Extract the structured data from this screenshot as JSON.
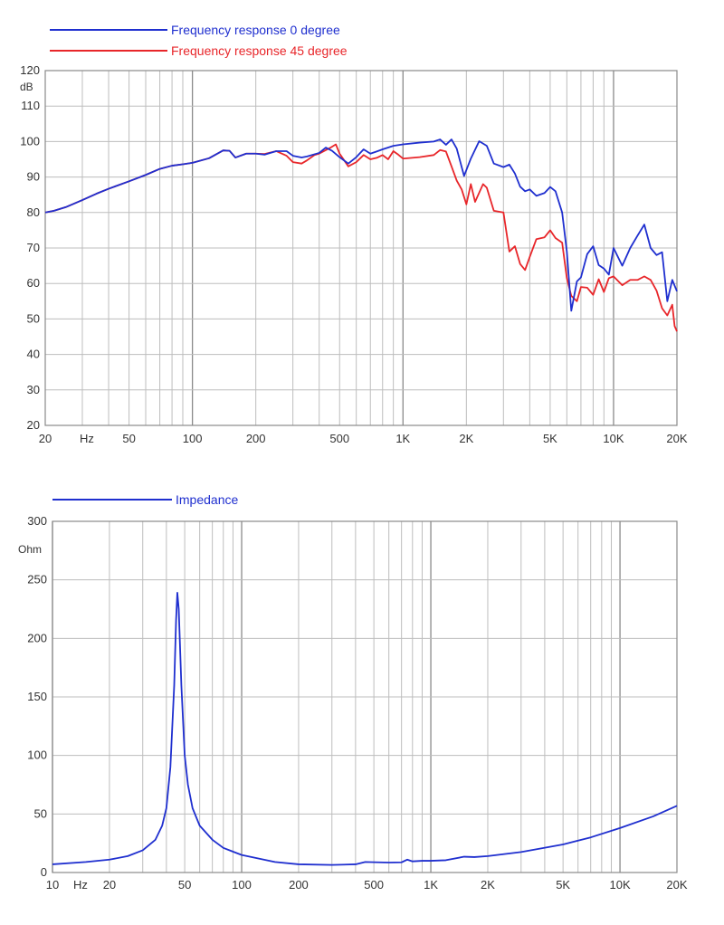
{
  "chart_data": [
    {
      "type": "line",
      "xscale": "log",
      "xlim": [
        20,
        20000
      ],
      "ylim": [
        20,
        120
      ],
      "ylabel_unit": "dB",
      "xunit": "Hz",
      "grid": true,
      "legend_position": "top-left",
      "xticks": [
        {
          "v": 20,
          "label": "20"
        },
        {
          "v": 50,
          "label": "50"
        },
        {
          "v": 100,
          "label": "100"
        },
        {
          "v": 200,
          "label": "200"
        },
        {
          "v": 500,
          "label": "500"
        },
        {
          "v": 1000,
          "label": "1K"
        },
        {
          "v": 2000,
          "label": "2K"
        },
        {
          "v": 5000,
          "label": "5K"
        },
        {
          "v": 10000,
          "label": "10K"
        },
        {
          "v": 20000,
          "label": "20K"
        }
      ],
      "yticks": [
        {
          "v": 20,
          "label": "20"
        },
        {
          "v": 30,
          "label": "30"
        },
        {
          "v": 40,
          "label": "40"
        },
        {
          "v": 50,
          "label": "50"
        },
        {
          "v": 60,
          "label": "60"
        },
        {
          "v": 70,
          "label": "70"
        },
        {
          "v": 80,
          "label": "80"
        },
        {
          "v": 90,
          "label": "90"
        },
        {
          "v": 100,
          "label": "100"
        },
        {
          "v": 110,
          "label": "110"
        },
        {
          "v": 120,
          "label": "120"
        }
      ],
      "series": [
        {
          "name": "Frequency response 0 degree",
          "color": "#1f2fcf",
          "points": [
            [
              20,
              80
            ],
            [
              22,
              80.5
            ],
            [
              25,
              81.5
            ],
            [
              30,
              83.5
            ],
            [
              35,
              85.3
            ],
            [
              40,
              86.7
            ],
            [
              50,
              88.8
            ],
            [
              60,
              90.6
            ],
            [
              70,
              92.3
            ],
            [
              80,
              93.2
            ],
            [
              90,
              93.6
            ],
            [
              100,
              94
            ],
            [
              120,
              95.3
            ],
            [
              140,
              97.5
            ],
            [
              150,
              97.4
            ],
            [
              160,
              95.5
            ],
            [
              180,
              96.6
            ],
            [
              200,
              96.6
            ],
            [
              220,
              96.3
            ],
            [
              250,
              97.3
            ],
            [
              280,
              97.3
            ],
            [
              300,
              96
            ],
            [
              330,
              95.5
            ],
            [
              350,
              95.8
            ],
            [
              400,
              96.8
            ],
            [
              430,
              98.3
            ],
            [
              460,
              97.4
            ],
            [
              500,
              95.6
            ],
            [
              550,
              93.8
            ],
            [
              600,
              95.6
            ],
            [
              650,
              97.8
            ],
            [
              700,
              96.6
            ],
            [
              750,
              97.2
            ],
            [
              800,
              97.8
            ],
            [
              900,
              98.8
            ],
            [
              1000,
              99.2
            ],
            [
              1200,
              99.7
            ],
            [
              1400,
              100
            ],
            [
              1500,
              100.6
            ],
            [
              1600,
              99.1
            ],
            [
              1700,
              100.6
            ],
            [
              1800,
              98
            ],
            [
              1950,
              90.3
            ],
            [
              2100,
              95.2
            ],
            [
              2300,
              100.1
            ],
            [
              2500,
              98.8
            ],
            [
              2700,
              93.8
            ],
            [
              3000,
              92.8
            ],
            [
              3200,
              93.5
            ],
            [
              3400,
              91
            ],
            [
              3600,
              87.3
            ],
            [
              3800,
              86
            ],
            [
              4000,
              86.5
            ],
            [
              4300,
              84.7
            ],
            [
              4700,
              85.5
            ],
            [
              5000,
              87.2
            ],
            [
              5300,
              86
            ],
            [
              5700,
              80
            ],
            [
              6000,
              69
            ],
            [
              6300,
              52.3
            ],
            [
              6700,
              60.6
            ],
            [
              7000,
              61.7
            ],
            [
              7500,
              68.3
            ],
            [
              8000,
              70.5
            ],
            [
              8500,
              65.2
            ],
            [
              9000,
              64.2
            ],
            [
              9500,
              62.5
            ],
            [
              10000,
              70
            ],
            [
              11000,
              65
            ],
            [
              12000,
              70
            ],
            [
              13000,
              73.5
            ],
            [
              14000,
              76.6
            ],
            [
              15000,
              70
            ],
            [
              16000,
              68
            ],
            [
              17000,
              68.8
            ],
            [
              18000,
              55
            ],
            [
              19000,
              61
            ],
            [
              20000,
              57.8
            ]
          ]
        },
        {
          "name": "Frequency response 45 degree",
          "color": "#e8262a",
          "points": [
            [
              20,
              80
            ],
            [
              22,
              80.5
            ],
            [
              25,
              81.5
            ],
            [
              30,
              83.5
            ],
            [
              35,
              85.3
            ],
            [
              40,
              86.7
            ],
            [
              50,
              88.8
            ],
            [
              60,
              90.6
            ],
            [
              70,
              92.3
            ],
            [
              80,
              93.2
            ],
            [
              90,
              93.6
            ],
            [
              100,
              94
            ],
            [
              120,
              95.3
            ],
            [
              140,
              97.5
            ],
            [
              150,
              97.4
            ],
            [
              160,
              95.5
            ],
            [
              180,
              96.6
            ],
            [
              200,
              96.6
            ],
            [
              220,
              96.5
            ],
            [
              250,
              97.3
            ],
            [
              280,
              96
            ],
            [
              300,
              94.2
            ],
            [
              330,
              93.8
            ],
            [
              350,
              94.7
            ],
            [
              380,
              96.2
            ],
            [
              400,
              96.6
            ],
            [
              450,
              98.2
            ],
            [
              480,
              99.2
            ],
            [
              500,
              96.6
            ],
            [
              550,
              93
            ],
            [
              600,
              94.2
            ],
            [
              650,
              96.2
            ],
            [
              700,
              95
            ],
            [
              750,
              95.4
            ],
            [
              800,
              96.2
            ],
            [
              850,
              95
            ],
            [
              900,
              97.3
            ],
            [
              950,
              96.3
            ],
            [
              1000,
              95.2
            ],
            [
              1200,
              95.6
            ],
            [
              1400,
              96.2
            ],
            [
              1500,
              97.6
            ],
            [
              1600,
              97.2
            ],
            [
              1700,
              93
            ],
            [
              1800,
              89
            ],
            [
              1900,
              86.5
            ],
            [
              2000,
              82.3
            ],
            [
              2100,
              88
            ],
            [
              2200,
              83
            ],
            [
              2400,
              88
            ],
            [
              2500,
              87
            ],
            [
              2700,
              80.5
            ],
            [
              3000,
              80
            ],
            [
              3200,
              69
            ],
            [
              3400,
              70.5
            ],
            [
              3600,
              65.5
            ],
            [
              3800,
              63.8
            ],
            [
              4000,
              67.5
            ],
            [
              4300,
              72.5
            ],
            [
              4700,
              73
            ],
            [
              5000,
              75
            ],
            [
              5300,
              72.8
            ],
            [
              5700,
              71.5
            ],
            [
              6000,
              61.5
            ],
            [
              6300,
              56.5
            ],
            [
              6700,
              55
            ],
            [
              7000,
              59
            ],
            [
              7500,
              58.8
            ],
            [
              8000,
              56.8
            ],
            [
              8500,
              61.2
            ],
            [
              9000,
              57.6
            ],
            [
              9500,
              61.5
            ],
            [
              10000,
              62
            ],
            [
              11000,
              59.5
            ],
            [
              12000,
              61
            ],
            [
              13000,
              61
            ],
            [
              14000,
              62
            ],
            [
              15000,
              61
            ],
            [
              16000,
              58
            ],
            [
              17000,
              53
            ],
            [
              18000,
              51
            ],
            [
              19000,
              54
            ],
            [
              19500,
              48
            ],
            [
              20000,
              46.5
            ]
          ]
        }
      ]
    },
    {
      "type": "line",
      "xscale": "log",
      "xlim": [
        10,
        20000
      ],
      "ylim": [
        0,
        300
      ],
      "ylabel_unit": "Ohm",
      "xunit": "Hz",
      "grid": true,
      "legend_position": "top-left",
      "xticks": [
        {
          "v": 10,
          "label": "10"
        },
        {
          "v": 20,
          "label": "20"
        },
        {
          "v": 50,
          "label": "50"
        },
        {
          "v": 100,
          "label": "100"
        },
        {
          "v": 200,
          "label": "200"
        },
        {
          "v": 500,
          "label": "500"
        },
        {
          "v": 1000,
          "label": "1K"
        },
        {
          "v": 2000,
          "label": "2K"
        },
        {
          "v": 5000,
          "label": "5K"
        },
        {
          "v": 10000,
          "label": "10K"
        },
        {
          "v": 20000,
          "label": "20K"
        }
      ],
      "yticks": [
        {
          "v": 0,
          "label": "0"
        },
        {
          "v": 50,
          "label": "50"
        },
        {
          "v": 100,
          "label": "100"
        },
        {
          "v": 150,
          "label": "150"
        },
        {
          "v": 200,
          "label": "200"
        },
        {
          "v": 250,
          "label": "250"
        },
        {
          "v": 300,
          "label": "300"
        }
      ],
      "series": [
        {
          "name": "Impedance",
          "color": "#1f2fcf",
          "points": [
            [
              10,
              7
            ],
            [
              15,
              9
            ],
            [
              20,
              11
            ],
            [
              25,
              14
            ],
            [
              30,
              19
            ],
            [
              35,
              28
            ],
            [
              38,
              40
            ],
            [
              40,
              55
            ],
            [
              42,
              90
            ],
            [
              44,
              160
            ],
            [
              45,
              215
            ],
            [
              45.7,
              239
            ],
            [
              46.5,
              225
            ],
            [
              48,
              160
            ],
            [
              50,
              100
            ],
            [
              52,
              75
            ],
            [
              55,
              55
            ],
            [
              60,
              40
            ],
            [
              70,
              28
            ],
            [
              80,
              21
            ],
            [
              100,
              15
            ],
            [
              150,
              9
            ],
            [
              200,
              7
            ],
            [
              300,
              6.5
            ],
            [
              400,
              7
            ],
            [
              450,
              9
            ],
            [
              500,
              8.8
            ],
            [
              600,
              8.5
            ],
            [
              700,
              8.7
            ],
            [
              750,
              11
            ],
            [
              800,
              9.5
            ],
            [
              900,
              10
            ],
            [
              1000,
              10
            ],
            [
              1200,
              10.5
            ],
            [
              1500,
              13.5
            ],
            [
              1700,
              13.2
            ],
            [
              2000,
              14
            ],
            [
              3000,
              17.5
            ],
            [
              5000,
              24
            ],
            [
              7000,
              30
            ],
            [
              10000,
              38
            ],
            [
              15000,
              48
            ],
            [
              20000,
              57
            ]
          ]
        }
      ]
    }
  ]
}
